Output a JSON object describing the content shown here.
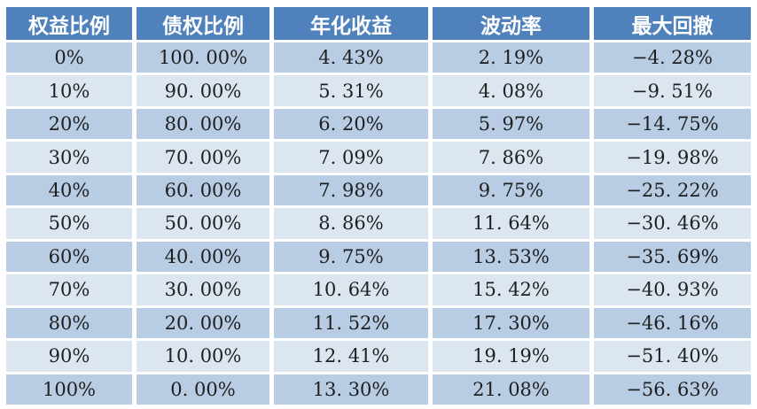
{
  "table": {
    "headers": [
      "权益比例",
      "债权比例",
      "年化收益",
      "波动率",
      "最大回撤"
    ],
    "rows": [
      [
        "0%",
        "100. 00%",
        "4. 43%",
        "2. 19%",
        "−4. 28%"
      ],
      [
        "10%",
        "90. 00%",
        "5. 31%",
        "4. 08%",
        "−9. 51%"
      ],
      [
        "20%",
        "80. 00%",
        "6. 20%",
        "5. 97%",
        "−14. 75%"
      ],
      [
        "30%",
        "70. 00%",
        "7. 09%",
        "7. 86%",
        "−19. 98%"
      ],
      [
        "40%",
        "60. 00%",
        "7. 98%",
        "9. 75%",
        "−25. 22%"
      ],
      [
        "50%",
        "50. 00%",
        "8. 86%",
        "11. 64%",
        "−30. 46%"
      ],
      [
        "60%",
        "40. 00%",
        "9. 75%",
        "13. 53%",
        "−35. 69%"
      ],
      [
        "70%",
        "30. 00%",
        "10. 64%",
        "15. 42%",
        "−40. 93%"
      ],
      [
        "80%",
        "20. 00%",
        "11. 52%",
        "17. 30%",
        "−46. 16%"
      ],
      [
        "90%",
        "10. 00%",
        "12. 41%",
        "19. 19%",
        "−51. 40%"
      ],
      [
        "100%",
        "0. 00%",
        "13. 30%",
        "21. 08%",
        "−56. 63%"
      ]
    ]
  },
  "chart_data": {
    "type": "table",
    "title": "",
    "columns": [
      "权益比例",
      "债权比例",
      "年化收益",
      "波动率",
      "最大回撤"
    ],
    "equity_ratio_pct": [
      0,
      10,
      20,
      30,
      40,
      50,
      60,
      70,
      80,
      90,
      100
    ],
    "bond_ratio_pct": [
      100.0,
      90.0,
      80.0,
      70.0,
      60.0,
      50.0,
      40.0,
      30.0,
      20.0,
      10.0,
      0.0
    ],
    "annualized_return_pct": [
      4.43,
      5.31,
      6.2,
      7.09,
      7.98,
      8.86,
      9.75,
      10.64,
      11.52,
      12.41,
      13.3
    ],
    "volatility_pct": [
      2.19,
      4.08,
      5.97,
      7.86,
      9.75,
      11.64,
      13.53,
      15.42,
      17.3,
      19.19,
      21.08
    ],
    "max_drawdown_pct": [
      -4.28,
      -9.51,
      -14.75,
      -19.98,
      -25.22,
      -30.46,
      -35.69,
      -40.93,
      -46.16,
      -51.4,
      -56.63
    ]
  },
  "colors": {
    "header_bg": "#4f81bd",
    "row_dark": "#b8cce4",
    "row_light": "#dce6f1",
    "grid": "#ffffff",
    "header_text": "#ffffff",
    "cell_text": "#1f1f1f"
  }
}
